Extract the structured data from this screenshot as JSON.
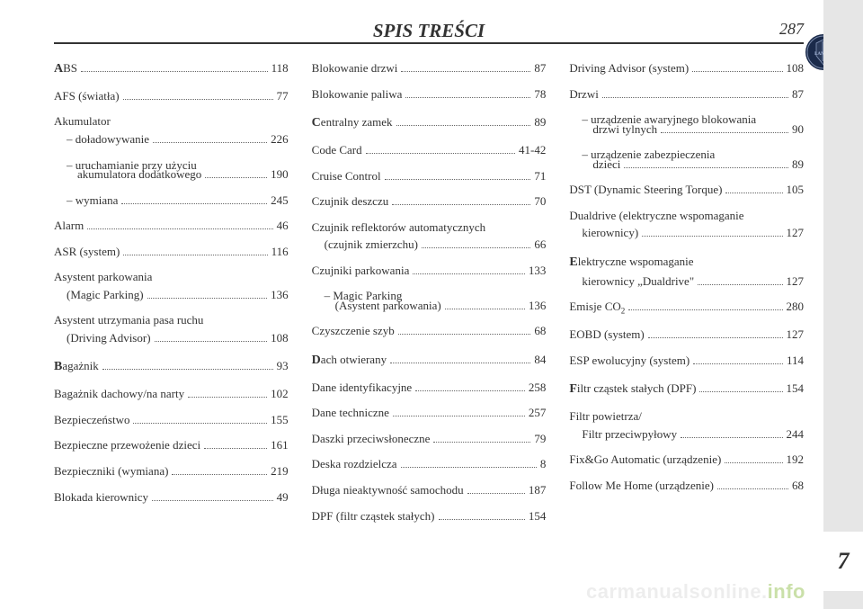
{
  "header": {
    "title": "SPIS TREŚCI",
    "page_number": "287"
  },
  "side_tab": {
    "active_label": "7"
  },
  "watermark": {
    "main": "carmanualsonline.",
    "accent": "info"
  },
  "columns": [
    {
      "entries": [
        {
          "lead": "A",
          "label": "BS",
          "page": "118"
        },
        {
          "label": "AFS (światła)",
          "page": "77"
        },
        {
          "label": "Akumulator",
          "header_only": true
        },
        {
          "sub": true,
          "label": "– doładowywanie",
          "page": "226"
        },
        {
          "sub": true,
          "label": "– uruchamianie przy użyciu",
          "header_only": true
        },
        {
          "continuation": true,
          "label": "akumulatora dodatkowego",
          "page": "190"
        },
        {
          "sub": true,
          "label": "– wymiana",
          "page": "245"
        },
        {
          "label": "Alarm",
          "page": "46"
        },
        {
          "label": "ASR (system)",
          "page": "116"
        },
        {
          "label": "Asystent parkowania",
          "header_only": true
        },
        {
          "sub": true,
          "label": "(Magic Parking)",
          "page": "136"
        },
        {
          "label": "Asystent utrzymania pasa ruchu",
          "header_only": true
        },
        {
          "sub": true,
          "label": "(Driving Advisor)",
          "page": "108"
        },
        {
          "lead": "B",
          "label": "agażnik",
          "page": "93",
          "group_start": true
        },
        {
          "label": "Bagażnik dachowy/na narty",
          "page": "102"
        },
        {
          "label": "Bezpieczeństwo",
          "page": "155"
        },
        {
          "label": "Bezpieczne przewożenie dzieci",
          "page": "161"
        },
        {
          "label": "Bezpieczniki (wymiana)",
          "page": "219"
        },
        {
          "label": "Blokada kierownicy",
          "page": "49"
        }
      ]
    },
    {
      "entries": [
        {
          "label": "Blokowanie drzwi",
          "page": "87"
        },
        {
          "label": "Blokowanie paliwa",
          "page": "78"
        },
        {
          "lead": "C",
          "label": "entralny zamek",
          "page": "89",
          "group_start": true
        },
        {
          "label": "Code Card",
          "page": "41-42"
        },
        {
          "label": "Cruise Control",
          "page": "71"
        },
        {
          "label": "Czujnik deszczu",
          "page": "70"
        },
        {
          "label": "Czujnik reflektorów automatycznych",
          "header_only": true
        },
        {
          "sub": true,
          "label": "(czujnik zmierzchu)",
          "page": "66"
        },
        {
          "label": "Czujniki parkowania",
          "page": "133"
        },
        {
          "sub": true,
          "label": "– Magic Parking",
          "header_only": true
        },
        {
          "continuation": true,
          "label": "(Asystent parkowania)",
          "page": "136"
        },
        {
          "label": "Czyszczenie szyb",
          "page": "68"
        },
        {
          "lead": "D",
          "label": "ach otwierany",
          "page": "84",
          "group_start": true
        },
        {
          "label": "Dane identyfikacyjne",
          "page": "258"
        },
        {
          "label": "Dane techniczne",
          "page": "257"
        },
        {
          "label": "Daszki przeciwsłoneczne",
          "page": "79"
        },
        {
          "label": "Deska rozdzielcza",
          "page": "8"
        },
        {
          "label": "Długa nieaktywność samochodu",
          "page": "187"
        },
        {
          "label": "DPF (filtr cząstek stałych)",
          "page": "154"
        }
      ]
    },
    {
      "entries": [
        {
          "label": "Driving Advisor (system)",
          "page": "108"
        },
        {
          "label": "Drzwi",
          "page": "87"
        },
        {
          "sub": true,
          "label": "– urządzenie awaryjnego blokowania",
          "header_only": true
        },
        {
          "continuation": true,
          "label": "drzwi tylnych",
          "page": "90"
        },
        {
          "sub": true,
          "label": "– urządzenie zabezpieczenia",
          "header_only": true
        },
        {
          "continuation": true,
          "label": "dzieci",
          "page": "89"
        },
        {
          "label": "DST (Dynamic Steering Torque)",
          "page": "105"
        },
        {
          "label": "Dualdrive (elektryczne wspomaganie",
          "header_only": true
        },
        {
          "sub": true,
          "label": "kierownicy)",
          "page": "127"
        },
        {
          "lead": "E",
          "label": "lektryczne wspomaganie",
          "header_only": true,
          "group_start": true
        },
        {
          "sub": true,
          "label": "kierownicy „Dualdrive\"",
          "page": "127"
        },
        {
          "label": "Emisje CO",
          "subscript": "2",
          "page": "280"
        },
        {
          "label": "EOBD (system)",
          "page": "127"
        },
        {
          "label": "ESP ewolucyjny (system)",
          "page": "114"
        },
        {
          "lead": "F",
          "label": "iltr cząstek stałych (DPF)",
          "page": "154",
          "group_start": true
        },
        {
          "label": "Filtr powietrza/",
          "header_only": true
        },
        {
          "sub": true,
          "label": "Filtr przeciwpyłowy",
          "page": "244"
        },
        {
          "label": "Fix&Go Automatic (urządzenie)",
          "page": "192"
        },
        {
          "label": "Follow Me Home (urządzenie)",
          "page": "68"
        }
      ]
    }
  ]
}
